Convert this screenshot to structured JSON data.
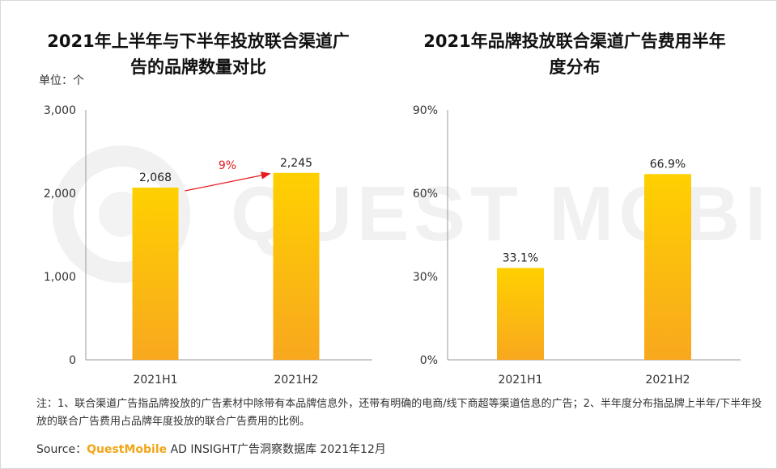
{
  "watermark_text": "QUEST MOBILE",
  "unit_label": "单位：个",
  "note_text": "注：1、联合渠道广告指品牌投放的广告素材中除带有本品牌信息外，还带有明确的电商/线下商超等渠道信息的广告；2、半年度分布指品牌上半年/下半年投放的联合广告费用占品牌年度投放的联合广告费用的比例。",
  "source": {
    "label": "Source：",
    "brand": "QuestMobile",
    "rest": " AD INSIGHT广告洞察数据库 2021年12月"
  },
  "colors": {
    "bar_top": "#ffd000",
    "bar_bottom": "#f8a81e",
    "arrow": "#e8191f",
    "axis": "#999999",
    "watermark": "#f1f1f1"
  },
  "chart_data": [
    {
      "type": "bar",
      "title_lines": [
        "2021年上半年与下半年投放联合渠道广",
        "告的品牌数量对比"
      ],
      "categories": [
        "2021H1",
        "2021H2"
      ],
      "values": [
        2068,
        2245
      ],
      "value_labels": [
        "2,068",
        "2,245"
      ],
      "ylim": [
        0,
        3000
      ],
      "yticks": [
        0,
        1000,
        2000,
        3000
      ],
      "ytick_labels": [
        "0",
        "1,000",
        "2,000",
        "3,000"
      ],
      "grid": false,
      "annotation": {
        "text": "9%",
        "from": "2021H1",
        "to": "2021H2"
      }
    },
    {
      "type": "bar",
      "title_lines": [
        "2021年品牌投放联合渠道广告费用半年",
        "度分布"
      ],
      "categories": [
        "2021H1",
        "2021H2"
      ],
      "values": [
        33.1,
        66.9
      ],
      "value_labels": [
        "33.1%",
        "66.9%"
      ],
      "ylim": [
        0,
        90
      ],
      "yticks": [
        0,
        30,
        60,
        90
      ],
      "ytick_labels": [
        "0%",
        "30%",
        "60%",
        "90%"
      ],
      "grid": false
    }
  ]
}
